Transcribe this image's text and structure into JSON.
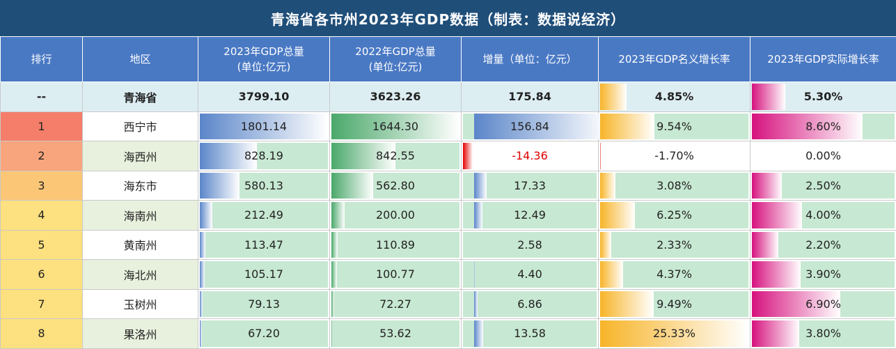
{
  "title": "青海省各市州2023年GDP数据（制表：数据说经济）",
  "headers": [
    "排行",
    "地区",
    "2023年GDP总量\n(单位:亿元)",
    "2022年GDP总量\n(单位:亿元)",
    "增量（单位：亿元）",
    "2023年GDP名义增长率",
    "2023年GDP实际增长率"
  ],
  "summary": {
    "rank": "--",
    "region": "青海省",
    "gdp2023": "3799.10",
    "gdp2022": "3623.26",
    "increment": "175.84",
    "nominal": "4.85%",
    "real": "5.30%"
  },
  "rows": [
    {
      "rank": "1",
      "region": "西宁市",
      "gdp2023": "1801.14",
      "gdp2022": "1644.30",
      "increment": "156.84",
      "nominal": "9.54%",
      "real": "8.60%"
    },
    {
      "rank": "2",
      "region": "海西州",
      "gdp2023": "828.19",
      "gdp2022": "842.55",
      "increment": "-14.36",
      "nominal": "-1.70%",
      "real": "0.00%"
    },
    {
      "rank": "3",
      "region": "海东市",
      "gdp2023": "580.13",
      "gdp2022": "562.80",
      "increment": "17.33",
      "nominal": "3.08%",
      "real": "2.50%"
    },
    {
      "rank": "4",
      "region": "海南州",
      "gdp2023": "212.49",
      "gdp2022": "200.00",
      "increment": "12.49",
      "nominal": "6.25%",
      "real": "4.00%"
    },
    {
      "rank": "5",
      "region": "黄南州",
      "gdp2023": "113.47",
      "gdp2022": "110.89",
      "increment": "2.58",
      "nominal": "2.33%",
      "real": "2.20%"
    },
    {
      "rank": "6",
      "region": "海北州",
      "gdp2023": "105.17",
      "gdp2022": "100.77",
      "increment": "4.40",
      "nominal": "4.37%",
      "real": "3.90%"
    },
    {
      "rank": "7",
      "region": "玉树州",
      "gdp2023": "79.13",
      "gdp2022": "72.27",
      "increment": "6.86",
      "nominal": "9.49%",
      "real": "6.90%"
    },
    {
      "rank": "8",
      "region": "果洛州",
      "gdp2023": "67.20",
      "gdp2022": "53.62",
      "increment": "13.58",
      "nominal": "25.33%",
      "real": "3.80%"
    }
  ],
  "colors": {
    "title_bg": "#1f4e79",
    "header_bg": "#4a79c4",
    "summary_bg": "#ddeef3",
    "gdp2023_bar": "#5b86c9",
    "gdp2022_bar": "#4aa86a",
    "increment_bar": "#5b86c9",
    "increment_neg": "#e60000",
    "nominal_bar": "#f7b428",
    "real_bar": "#d6127e",
    "green_bg": "#c7e8d2",
    "rank_colors": [
      "#f47e6a",
      "#f8a57d",
      "#fbc777",
      "#fde07f",
      "#fde07f",
      "#fde07f",
      "#fde07f",
      "#fde07f"
    ]
  },
  "chart_data": {
    "type": "table",
    "title": "青海省各市州2023年GDP数据（制表：数据说经济）",
    "columns": [
      "排行",
      "地区",
      "2023年GDP总量(单位:亿元)",
      "2022年GDP总量(单位:亿元)",
      "增量（单位：亿元）",
      "2023年GDP名义增长率",
      "2023年GDP实际增长率"
    ],
    "categories": [
      "青海省",
      "西宁市",
      "海西州",
      "海东市",
      "海南州",
      "黄南州",
      "海北州",
      "玉树州",
      "果洛州"
    ],
    "series": [
      {
        "name": "2023年GDP总量(单位:亿元)",
        "values": [
          3799.1,
          1801.14,
          828.19,
          580.13,
          212.49,
          113.47,
          105.17,
          79.13,
          67.2
        ]
      },
      {
        "name": "2022年GDP总量(单位:亿元)",
        "values": [
          3623.26,
          1644.3,
          842.55,
          562.8,
          200.0,
          110.89,
          100.77,
          72.27,
          53.62
        ]
      },
      {
        "name": "增量（单位：亿元）",
        "values": [
          175.84,
          156.84,
          -14.36,
          17.33,
          12.49,
          2.58,
          4.4,
          6.86,
          13.58
        ]
      },
      {
        "name": "2023年GDP名义增长率",
        "values": [
          4.85,
          9.54,
          -1.7,
          3.08,
          6.25,
          2.33,
          4.37,
          9.49,
          25.33
        ]
      },
      {
        "name": "2023年GDP实际增长率",
        "values": [
          5.3,
          8.6,
          0.0,
          2.5,
          4.0,
          2.2,
          3.9,
          6.9,
          3.8
        ]
      }
    ]
  }
}
